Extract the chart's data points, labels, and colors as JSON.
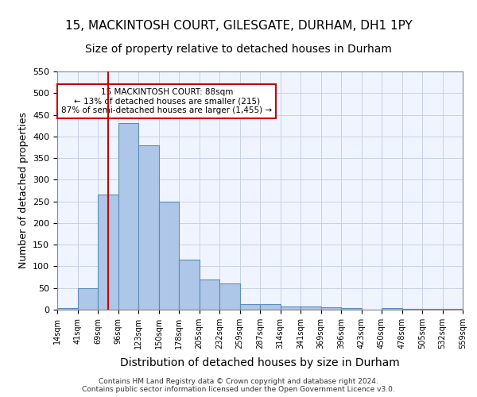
{
  "title1": "15, MACKINTOSH COURT, GILESGATE, DURHAM, DH1 1PY",
  "title2": "Size of property relative to detached houses in Durham",
  "xlabel": "Distribution of detached houses by size in Durham",
  "ylabel": "Number of detached properties",
  "bar_values": [
    3,
    50,
    265,
    430,
    380,
    250,
    115,
    70,
    60,
    13,
    13,
    8,
    7,
    6,
    3,
    0,
    3,
    1,
    1,
    1
  ],
  "bar_labels": [
    "14sqm",
    "41sqm",
    "69sqm",
    "96sqm",
    "123sqm",
    "150sqm",
    "178sqm",
    "205sqm",
    "232sqm",
    "259sqm",
    "287sqm",
    "314sqm",
    "341sqm",
    "369sqm",
    "396sqm",
    "423sqm",
    "450sqm",
    "478sqm",
    "505sqm",
    "532sqm",
    "559sqm"
  ],
  "bar_color": "#aec6e8",
  "bar_edge_color": "#5b8db8",
  "bar_edge_width": 0.8,
  "property_line_x": 2.0,
  "property_line_color": "#cc0000",
  "annotation_text": "15 MACKINTOSH COURT: 88sqm\n← 13% of detached houses are smaller (215)\n87% of semi-detached houses are larger (1,455) →",
  "annotation_box_color": "#ffffff",
  "annotation_box_edge": "#cc0000",
  "ylim": [
    0,
    550
  ],
  "yticks": [
    0,
    50,
    100,
    150,
    200,
    250,
    300,
    350,
    400,
    450,
    500,
    550
  ],
  "background_color": "#f0f4ff",
  "footer_text": "Contains HM Land Registry data © Crown copyright and database right 2024.\nContains public sector information licensed under the Open Government Licence v3.0.",
  "title1_fontsize": 11,
  "title2_fontsize": 10,
  "xlabel_fontsize": 10,
  "ylabel_fontsize": 9
}
